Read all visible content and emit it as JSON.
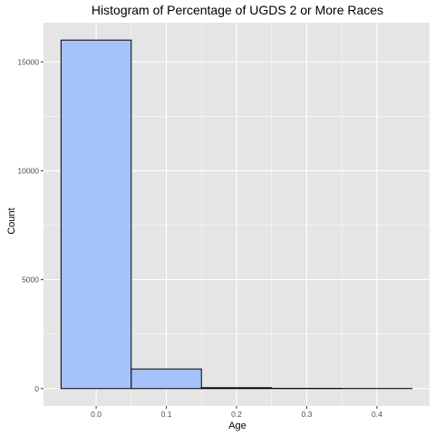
{
  "chart_data": {
    "type": "bar",
    "title": "Histogram of Percentage of UGDS 2 or More Races",
    "xlabel": "Age",
    "ylabel": "Count",
    "bins": [
      {
        "x_start": -0.05,
        "x_end": 0.05,
        "count": 16000
      },
      {
        "x_start": 0.05,
        "x_end": 0.15,
        "count": 900
      },
      {
        "x_start": 0.15,
        "x_end": 0.25,
        "count": 40
      },
      {
        "x_start": 0.25,
        "x_end": 0.35,
        "count": 10
      },
      {
        "x_start": 0.35,
        "x_end": 0.45,
        "count": 3
      }
    ],
    "xlim": [
      -0.075,
      0.475
    ],
    "ylim": [
      -800,
      16800
    ],
    "x_ticks": [
      0.0,
      0.1,
      0.2,
      0.3,
      0.4
    ],
    "x_tick_labels": [
      "0.0",
      "0.1",
      "0.2",
      "0.3",
      "0.4"
    ],
    "y_ticks": [
      0,
      5000,
      10000,
      15000
    ],
    "y_tick_labels": [
      "0",
      "5000",
      "10000",
      "15000"
    ],
    "grid": true,
    "legend": "none",
    "colors": {
      "bar_fill": "#a6c2fa",
      "bar_stroke": "#000000",
      "panel_background": "#e5e5e5",
      "grid_major": "#ffffff",
      "tick_text": "#4d4d4d"
    }
  }
}
